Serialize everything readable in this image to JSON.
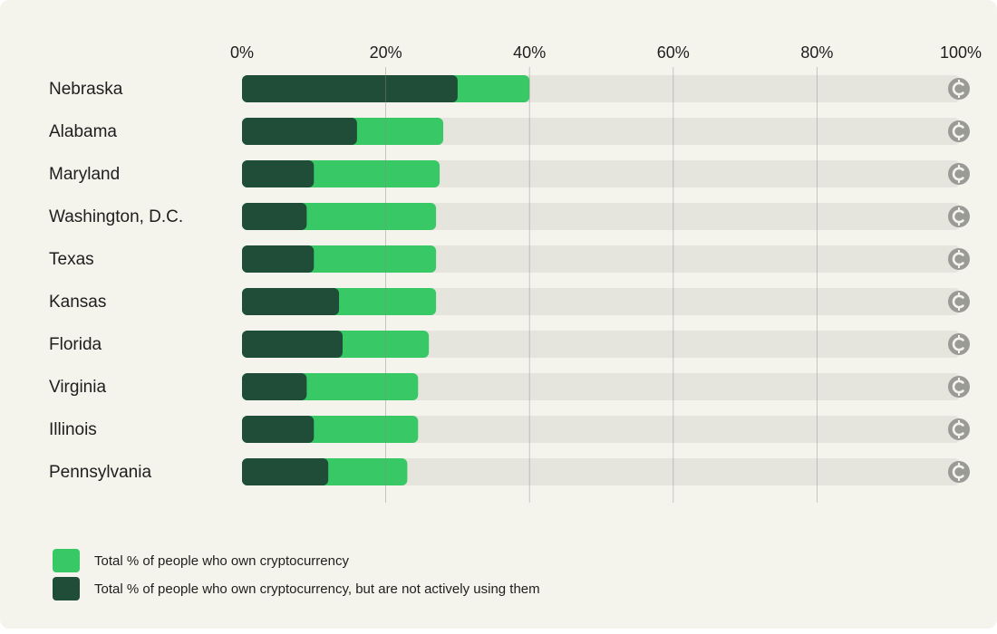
{
  "colors": {
    "background": "#f4f3ec",
    "track": "#e5e4dd",
    "total": "#38c865",
    "inactive": "#1f4d38",
    "gridline": "#8a8a8a",
    "coin_icon": "#9a9a96",
    "text": "#1e1e1e"
  },
  "chart_data": {
    "type": "bar",
    "orientation": "horizontal",
    "stacked_overlay": true,
    "categories": [
      "Nebraska",
      "Alabama",
      "Maryland",
      "Washington, D.C.",
      "Texas",
      "Kansas",
      "Florida",
      "Virginia",
      "Illinois",
      "Pennsylvania"
    ],
    "series": [
      {
        "name": "Total % of people who own cryptocurrency",
        "color": "#38c865",
        "values": [
          40,
          28,
          27.5,
          27,
          27,
          27,
          26,
          24.5,
          24.5,
          23
        ]
      },
      {
        "name": "Total % of people who own cryptocurrency, but are not actively using them",
        "color": "#1f4d38",
        "values": [
          30,
          16,
          10,
          9,
          10,
          13.5,
          14,
          9,
          10,
          12
        ]
      }
    ],
    "x_ticks": [
      "0%",
      "20%",
      "40%",
      "60%",
      "80%",
      "100%"
    ],
    "xlim": [
      0,
      100
    ],
    "grid": true,
    "axis_position": "top",
    "legend_position": "bottom-left",
    "row_end_icon": "coin-icon"
  }
}
